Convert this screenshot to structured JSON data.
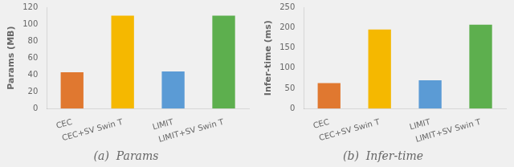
{
  "chart_data": [
    {
      "type": "bar",
      "title": "(a)  Params",
      "ylabel": "Params (MB)",
      "categories": [
        "CEC",
        "CEC+SV Swin T",
        "LIMIT",
        "LIMIT+SV Swin T"
      ],
      "values": [
        43,
        110,
        44,
        110
      ],
      "colors": [
        "#E07830",
        "#F5B800",
        "#5B9BD5",
        "#5DAF4E"
      ],
      "ylim": [
        0,
        120
      ],
      "yticks": [
        0,
        20,
        40,
        60,
        80,
        100,
        120
      ],
      "grid": false
    },
    {
      "type": "bar",
      "title": "(b)  Infer-time",
      "ylabel": "Infer-time (ms)",
      "categories": [
        "CEC",
        "CEC+SV Swin T",
        "LIMIT",
        "LIMIT+SV Swin T"
      ],
      "values": [
        63,
        195,
        70,
        207
      ],
      "colors": [
        "#E07830",
        "#F5B800",
        "#5B9BD5",
        "#5DAF4E"
      ],
      "ylim": [
        0,
        250
      ],
      "yticks": [
        0,
        50,
        100,
        150,
        200,
        250
      ],
      "grid": false
    }
  ]
}
